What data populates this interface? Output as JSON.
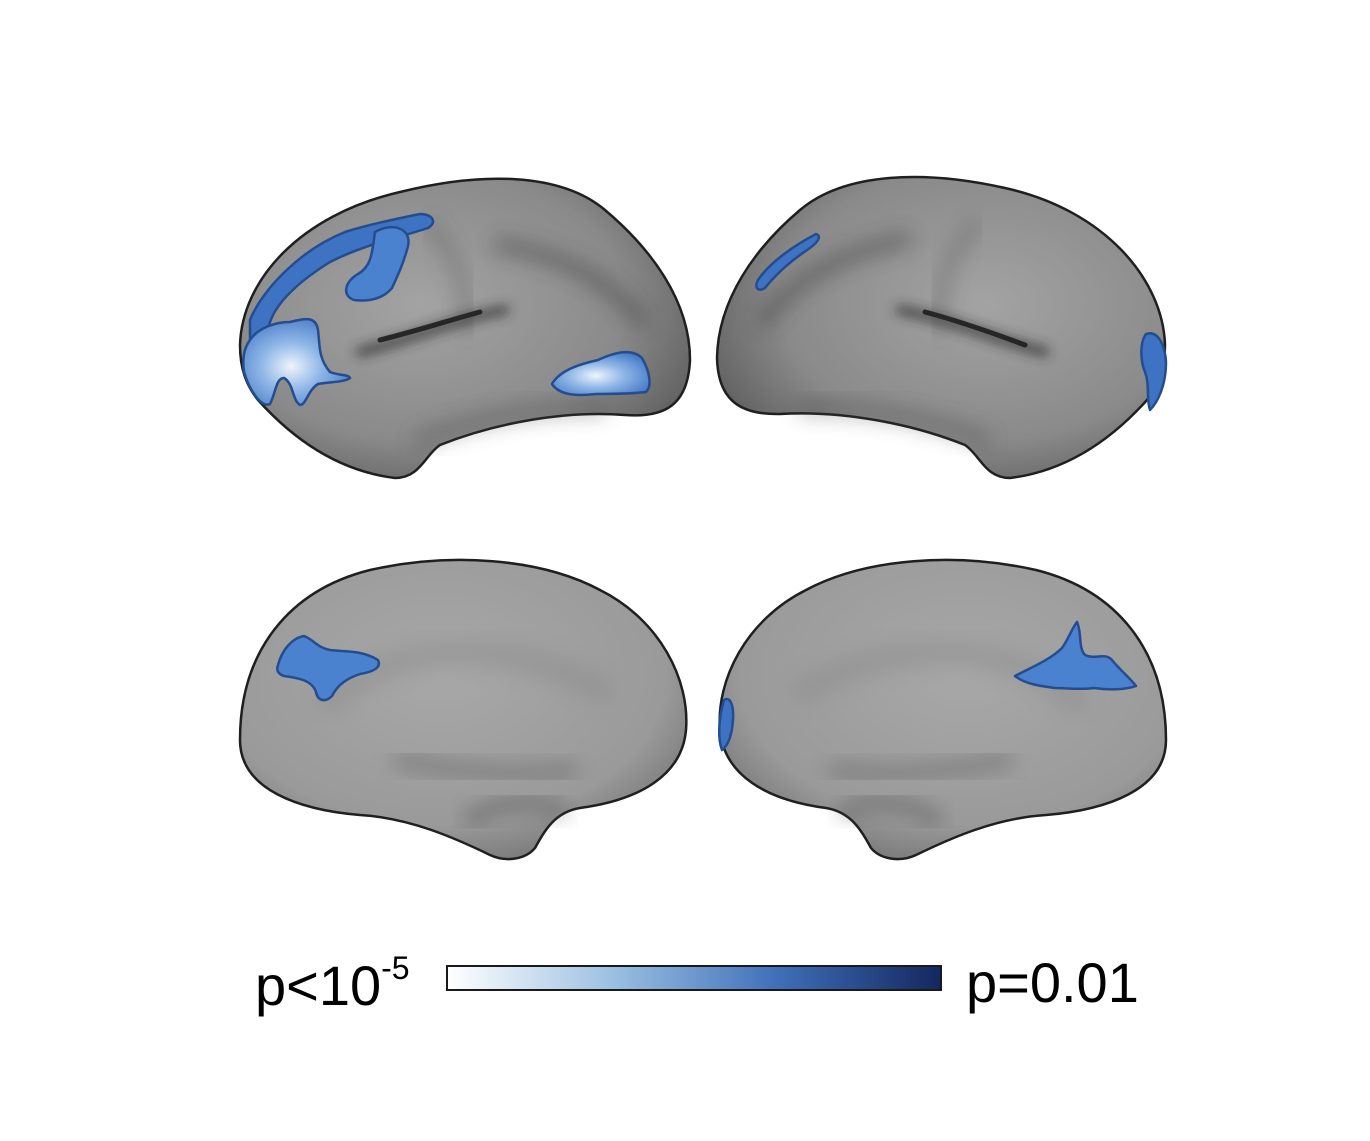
{
  "figure": {
    "views": [
      {
        "name": "left-hemisphere-lateral",
        "hemisphere": "left",
        "view": "lateral"
      },
      {
        "name": "right-hemisphere-lateral",
        "hemisphere": "right",
        "view": "lateral"
      },
      {
        "name": "left-hemisphere-medial",
        "hemisphere": "left",
        "view": "medial"
      },
      {
        "name": "right-hemisphere-medial",
        "hemisphere": "right",
        "view": "medial"
      }
    ],
    "colors": {
      "surface_light": "#a3a3a3",
      "surface_dark": "#3f3f3f",
      "cluster_strong": "#f1f5fc",
      "cluster_mid": "#4d86d2",
      "cluster_weak": "#203f7a"
    }
  },
  "legend": {
    "min_prefix": "p<10",
    "min_exponent": "-5",
    "max_label": "p=0.01",
    "gradient": [
      "#ffffff",
      "#9cc0e2",
      "#3f70b9",
      "#14285f"
    ]
  }
}
